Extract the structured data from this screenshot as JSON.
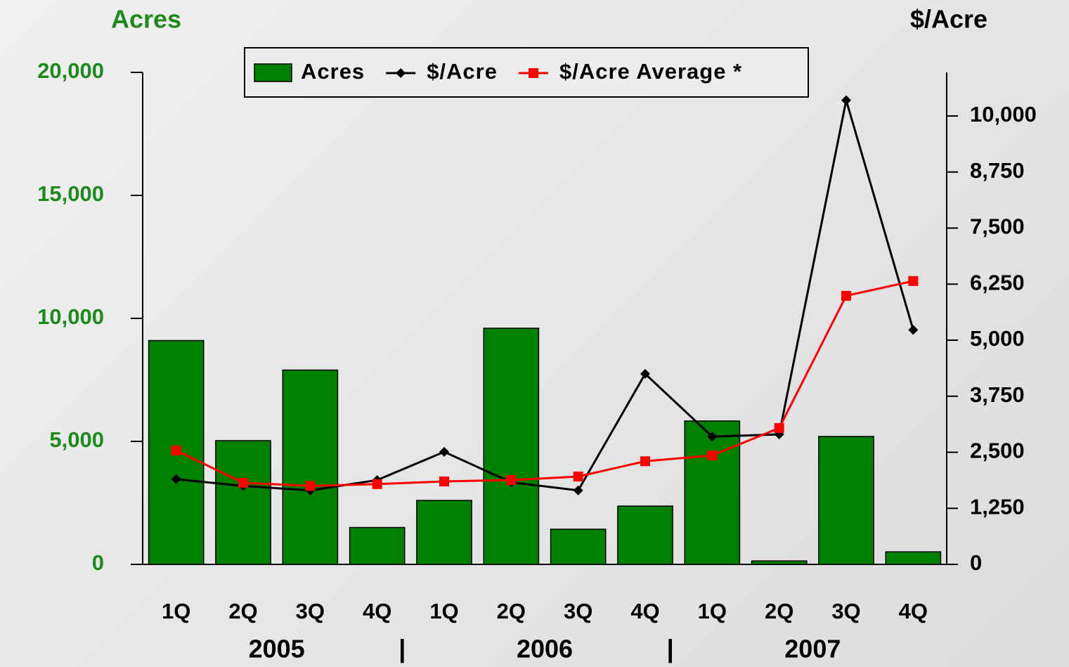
{
  "chart_data": {
    "type": "combo",
    "y_label": "Acres",
    "y2_label": "$/Acre",
    "categories": [
      "1Q",
      "2Q",
      "3Q",
      "4Q",
      "1Q",
      "2Q",
      "3Q",
      "4Q",
      "1Q",
      "2Q",
      "3Q",
      "4Q"
    ],
    "groups": [
      "2005",
      "2006",
      "2007"
    ],
    "group_separator": "|",
    "series": [
      {
        "name": "Acres",
        "type": "bar",
        "color": "#008000",
        "values": [
          9100,
          5030,
          7900,
          1500,
          2600,
          9600,
          1430,
          2370,
          5830,
          140,
          5200,
          510
        ]
      },
      {
        "name": "$/Acre",
        "type": "line",
        "axis": "y2",
        "color": "#000000",
        "marker": "diamond",
        "values": [
          1900,
          1750,
          1650,
          1880,
          2510,
          1830,
          1650,
          4250,
          2850,
          2900,
          10350,
          5230
        ]
      },
      {
        "name": "$/Acre Average *",
        "type": "line",
        "axis": "y2",
        "color": "#ff0000",
        "marker": "square",
        "values": [
          2540,
          1820,
          1750,
          1790,
          1850,
          1880,
          1960,
          2300,
          2430,
          3040,
          5990,
          6320
        ]
      }
    ],
    "ylim": [
      0,
      20000
    ],
    "yticks": [
      0,
      {
        "value": 5000,
        "label": "5,000"
      },
      {
        "value": 10000,
        "label": "10,000"
      },
      {
        "value": 15000,
        "label": "15,000"
      },
      {
        "value": 20000,
        "label": "20,000"
      }
    ],
    "y2lim": [
      0,
      10972
    ],
    "y2ticks": [
      0,
      {
        "value": 1250,
        "label": "1,250"
      },
      {
        "value": 2500,
        "label": "2,500"
      },
      {
        "value": 3750,
        "label": "3,750"
      },
      {
        "value": 5000,
        "label": "5,000"
      },
      {
        "value": 6250,
        "label": "6,250"
      },
      {
        "value": 7500,
        "label": "7,500"
      },
      {
        "value": 8750,
        "label": "8,750"
      },
      {
        "value": 10000,
        "label": "10,000"
      }
    ],
    "y_label_color": "#1e8a1e",
    "grid": false
  }
}
